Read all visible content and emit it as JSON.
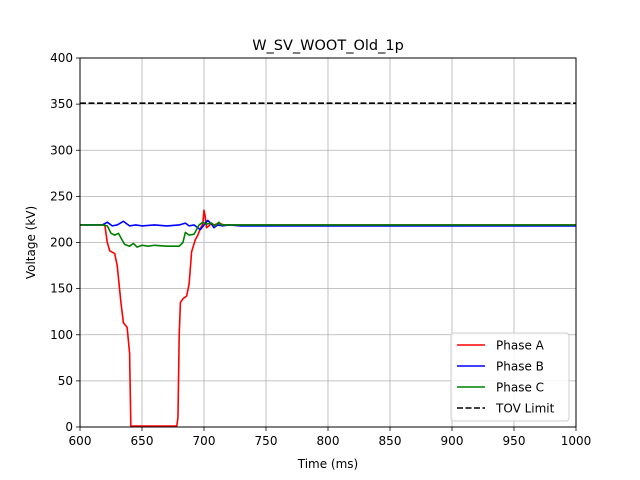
{
  "chart_data": {
    "type": "line",
    "title": "W_SV_WOOT_Old_1p",
    "xlabel": "Time (ms)",
    "ylabel": "Voltage (kV)",
    "xlim": [
      600,
      1000
    ],
    "ylim": [
      0,
      400
    ],
    "xticks": [
      600,
      650,
      700,
      750,
      800,
      850,
      900,
      950,
      1000
    ],
    "yticks": [
      0,
      50,
      100,
      150,
      200,
      250,
      300,
      350,
      400
    ],
    "grid": true,
    "legend_position": "lower-right",
    "series": [
      {
        "name": "Phase A",
        "color": "#ff0000",
        "dash": "solid",
        "points": [
          [
            600,
            219
          ],
          [
            620,
            219
          ],
          [
            622,
            200
          ],
          [
            624,
            191
          ],
          [
            628,
            188
          ],
          [
            630,
            175
          ],
          [
            633,
            135
          ],
          [
            635,
            113
          ],
          [
            638,
            108
          ],
          [
            640,
            80
          ],
          [
            641,
            1
          ],
          [
            650,
            1
          ],
          [
            660,
            1
          ],
          [
            670,
            1
          ],
          [
            678,
            1
          ],
          [
            679,
            10
          ],
          [
            680,
            100
          ],
          [
            681,
            135
          ],
          [
            683,
            139
          ],
          [
            686,
            142
          ],
          [
            688,
            155
          ],
          [
            690,
            190
          ],
          [
            693,
            203
          ],
          [
            695,
            208
          ],
          [
            697,
            215
          ],
          [
            699,
            220
          ],
          [
            700,
            235
          ],
          [
            701,
            228
          ],
          [
            702,
            216
          ],
          [
            704,
            218
          ],
          [
            706,
            221
          ],
          [
            708,
            219
          ],
          [
            712,
            221
          ],
          [
            716,
            219
          ],
          [
            720,
            219
          ],
          [
            800,
            219
          ],
          [
            900,
            219
          ],
          [
            1000,
            219
          ]
        ]
      },
      {
        "name": "Phase B",
        "color": "#0000ff",
        "dash": "solid",
        "points": [
          [
            600,
            219
          ],
          [
            610,
            219
          ],
          [
            618,
            219
          ],
          [
            622,
            222
          ],
          [
            626,
            218
          ],
          [
            630,
            219
          ],
          [
            635,
            223
          ],
          [
            640,
            218
          ],
          [
            645,
            219
          ],
          [
            650,
            218
          ],
          [
            660,
            219
          ],
          [
            670,
            218
          ],
          [
            680,
            219
          ],
          [
            685,
            221
          ],
          [
            688,
            218
          ],
          [
            692,
            219
          ],
          [
            695,
            216
          ],
          [
            697,
            214
          ],
          [
            700,
            219
          ],
          [
            703,
            224
          ],
          [
            706,
            220
          ],
          [
            708,
            216
          ],
          [
            711,
            219
          ],
          [
            715,
            218
          ],
          [
            720,
            219
          ],
          [
            730,
            218
          ],
          [
            750,
            218
          ],
          [
            800,
            218
          ],
          [
            900,
            218
          ],
          [
            1000,
            218
          ]
        ]
      },
      {
        "name": "Phase C",
        "color": "#008000",
        "dash": "solid",
        "points": [
          [
            600,
            219
          ],
          [
            618,
            219
          ],
          [
            622,
            218
          ],
          [
            625,
            210
          ],
          [
            628,
            208
          ],
          [
            631,
            210
          ],
          [
            633,
            205
          ],
          [
            636,
            198
          ],
          [
            640,
            196
          ],
          [
            643,
            199
          ],
          [
            646,
            195
          ],
          [
            650,
            197
          ],
          [
            655,
            196
          ],
          [
            660,
            197
          ],
          [
            670,
            196
          ],
          [
            680,
            196
          ],
          [
            683,
            200
          ],
          [
            685,
            211
          ],
          [
            688,
            208
          ],
          [
            692,
            209
          ],
          [
            696,
            219
          ],
          [
            699,
            222
          ],
          [
            702,
            220
          ],
          [
            706,
            221
          ],
          [
            709,
            218
          ],
          [
            712,
            222
          ],
          [
            714,
            219
          ],
          [
            720,
            219
          ],
          [
            800,
            219
          ],
          [
            900,
            219
          ],
          [
            1000,
            219
          ]
        ]
      },
      {
        "name": "TOV Limit",
        "color": "#000000",
        "dash": "dashed",
        "points": [
          [
            600,
            351
          ],
          [
            1000,
            351
          ]
        ]
      }
    ]
  }
}
